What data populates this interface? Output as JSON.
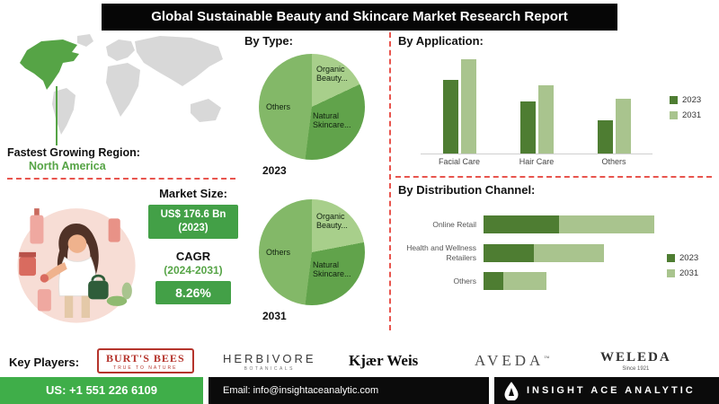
{
  "header": {
    "title": "Global Sustainable Beauty and Skincare Market Research Report"
  },
  "region": {
    "label": "Fastest Growing Region:",
    "value": "North America"
  },
  "market": {
    "size_label": "Market Size:",
    "size_value": "US$ 176.6 Bn (2023)",
    "cagr_label": "CAGR",
    "cagr_period": "(2024-2031)",
    "cagr_value": "8.26%"
  },
  "colors": {
    "accent_green": "#43a047",
    "bright_green": "#3fae49",
    "dark_series_green": "#4e7d32",
    "light_series_green": "#a9c48e",
    "dashed_red": "#e8554e",
    "map_gray": "#d8d8d8",
    "map_green": "#56a446"
  },
  "chart_data": [
    {
      "type": "pie",
      "title": "By Type:",
      "year": "2023",
      "labels": [
        "Organic Beauty...",
        "Natural Skincare...",
        "Others"
      ],
      "values": [
        18,
        34,
        48
      ],
      "colors": [
        "#a8cf8b",
        "#61a34b",
        "#83b868"
      ]
    },
    {
      "type": "pie",
      "title": "By Type:",
      "year": "2031",
      "labels": [
        "Organic Beauty...",
        "Natural Skincare...",
        "Others"
      ],
      "values": [
        22,
        30,
        48
      ],
      "colors": [
        "#a8cf8b",
        "#61a34b",
        "#83b868"
      ]
    },
    {
      "type": "bar",
      "title": "By Application:",
      "categories": [
        "Facial Care",
        "Hair Care",
        "Others"
      ],
      "series": [
        {
          "name": "2023",
          "color": "#4e7d32",
          "values": [
            78,
            55,
            35
          ]
        },
        {
          "name": "2031",
          "color": "#a9c48e",
          "values": [
            100,
            72,
            58
          ]
        }
      ],
      "ylim": [
        0,
        100
      ],
      "grid": false,
      "legend_position": "right"
    },
    {
      "type": "bar",
      "orientation": "horizontal",
      "title": "By Distribution Channel:",
      "categories": [
        "Online Retail",
        "Health and Wellness Retailers",
        "Others"
      ],
      "series": [
        {
          "name": "2023",
          "color": "#4e7d32",
          "values": [
            30,
            20,
            8
          ]
        },
        {
          "name": "2031",
          "color": "#a9c48e",
          "values": [
            68,
            48,
            25
          ]
        }
      ],
      "xlim": [
        0,
        100
      ],
      "grid": false,
      "legend_position": "right"
    }
  ],
  "key_players": {
    "label": "Key Players:",
    "players": [
      {
        "name": "BURT'S BEES",
        "tagline": "TRUE TO NATURE"
      },
      {
        "name": "HERBIVORE",
        "tagline": "BOTANICALS"
      },
      {
        "name": "Kjær Weis",
        "tagline": ""
      },
      {
        "name": "AVEDA",
        "tagline": "™"
      },
      {
        "name": "WELEDA",
        "tagline": "Since 1921"
      }
    ]
  },
  "footer": {
    "phone": "US: +1 551 226 6109",
    "email": "Email: info@insightaceanalytic.com",
    "brand": "INSIGHT ACE ANALYTIC"
  }
}
